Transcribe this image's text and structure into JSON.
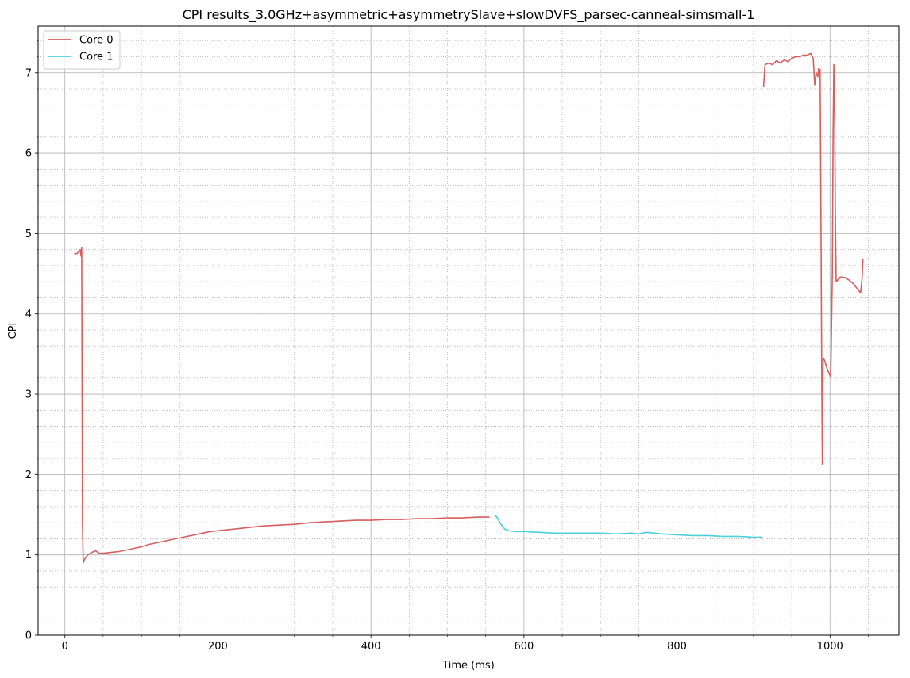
{
  "chart_data": {
    "type": "line",
    "title": "CPI results_3.0GHz+asymmetric+asymmetrySlave+slowDVFS_parsec-canneal-simsmall-1",
    "xlabel": "Time (ms)",
    "ylabel": "CPI",
    "xlim": [
      -35,
      1090
    ],
    "ylim": [
      0,
      7.58
    ],
    "xticks": [
      0,
      200,
      400,
      600,
      800,
      1000
    ],
    "xtick_labels": [
      "0",
      "200",
      "400",
      "600",
      "800",
      "1000"
    ],
    "yticks": [
      0,
      1,
      2,
      3,
      4,
      5,
      6,
      7
    ],
    "ytick_labels": [
      "0",
      "1",
      "2",
      "3",
      "4",
      "5",
      "6",
      "7"
    ],
    "x_minor_step": 50,
    "y_minor_step": 0.2,
    "grid": "major solid, minor dotted",
    "legend_position": "upper-left",
    "series": [
      {
        "name": "Core 0",
        "color": "#d65f5f",
        "segments": [
          [
            [
              12,
              4.75
            ],
            [
              16,
              4.75
            ],
            [
              18,
              4.78
            ],
            [
              20,
              4.8
            ],
            [
              21,
              4.72
            ],
            [
              22,
              4.82
            ],
            [
              23,
              1.4
            ],
            [
              24,
              0.9
            ],
            [
              26,
              0.95
            ],
            [
              30,
              1.0
            ],
            [
              35,
              1.03
            ],
            [
              40,
              1.05
            ],
            [
              45,
              1.02
            ],
            [
              50,
              1.02
            ],
            [
              60,
              1.03
            ],
            [
              70,
              1.04
            ],
            [
              80,
              1.06
            ],
            [
              90,
              1.08
            ],
            [
              100,
              1.1
            ],
            [
              110,
              1.13
            ],
            [
              120,
              1.15
            ],
            [
              130,
              1.17
            ],
            [
              140,
              1.19
            ],
            [
              150,
              1.21
            ],
            [
              160,
              1.23
            ],
            [
              170,
              1.25
            ],
            [
              180,
              1.27
            ],
            [
              190,
              1.29
            ],
            [
              200,
              1.3
            ],
            [
              220,
              1.32
            ],
            [
              240,
              1.34
            ],
            [
              260,
              1.36
            ],
            [
              280,
              1.37
            ],
            [
              300,
              1.38
            ],
            [
              320,
              1.4
            ],
            [
              340,
              1.41
            ],
            [
              360,
              1.42
            ],
            [
              380,
              1.43
            ],
            [
              400,
              1.43
            ],
            [
              420,
              1.44
            ],
            [
              440,
              1.44
            ],
            [
              460,
              1.45
            ],
            [
              480,
              1.45
            ],
            [
              500,
              1.46
            ],
            [
              520,
              1.46
            ],
            [
              540,
              1.47
            ],
            [
              555,
              1.47
            ]
          ],
          [
            [
              913,
              6.82
            ],
            [
              915,
              7.1
            ],
            [
              920,
              7.12
            ],
            [
              925,
              7.1
            ],
            [
              930,
              7.15
            ],
            [
              935,
              7.12
            ],
            [
              940,
              7.16
            ],
            [
              945,
              7.14
            ],
            [
              950,
              7.18
            ],
            [
              955,
              7.2
            ],
            [
              960,
              7.2
            ],
            [
              965,
              7.22
            ],
            [
              970,
              7.22
            ],
            [
              975,
              7.24
            ],
            [
              978,
              7.18
            ],
            [
              980,
              6.85
            ],
            [
              982,
              7.0
            ],
            [
              984,
              6.95
            ],
            [
              985,
              7.05
            ],
            [
              986,
              6.98
            ],
            [
              987,
              7.04
            ],
            [
              988,
              5.5
            ],
            [
              989,
              3.5
            ],
            [
              990,
              2.12
            ],
            [
              991,
              3.45
            ],
            [
              993,
              3.42
            ],
            [
              995,
              3.35
            ],
            [
              997,
              3.3
            ],
            [
              999,
              3.25
            ],
            [
              1001,
              3.22
            ],
            [
              1003,
              4.5
            ],
            [
              1004,
              6.2
            ],
            [
              1005,
              7.1
            ],
            [
              1006,
              6.5
            ],
            [
              1007,
              5.2
            ],
            [
              1008,
              4.4
            ],
            [
              1010,
              4.42
            ],
            [
              1012,
              4.45
            ],
            [
              1015,
              4.46
            ],
            [
              1020,
              4.45
            ],
            [
              1025,
              4.42
            ],
            [
              1030,
              4.38
            ],
            [
              1035,
              4.32
            ],
            [
              1040,
              4.26
            ],
            [
              1042,
              4.45
            ],
            [
              1043,
              4.68
            ]
          ]
        ]
      },
      {
        "name": "Core 1",
        "color": "#4dd0d9",
        "segments": [
          [
            [
              562,
              1.5
            ],
            [
              566,
              1.45
            ],
            [
              570,
              1.38
            ],
            [
              575,
              1.32
            ],
            [
              580,
              1.3
            ],
            [
              590,
              1.29
            ],
            [
              600,
              1.29
            ],
            [
              620,
              1.28
            ],
            [
              640,
              1.27
            ],
            [
              660,
              1.27
            ],
            [
              680,
              1.27
            ],
            [
              700,
              1.27
            ],
            [
              720,
              1.26
            ],
            [
              740,
              1.27
            ],
            [
              750,
              1.26
            ],
            [
              760,
              1.28
            ],
            [
              770,
              1.27
            ],
            [
              780,
              1.26
            ],
            [
              800,
              1.25
            ],
            [
              820,
              1.24
            ],
            [
              840,
              1.24
            ],
            [
              860,
              1.23
            ],
            [
              880,
              1.23
            ],
            [
              900,
              1.22
            ],
            [
              911,
              1.22
            ]
          ]
        ]
      }
    ]
  }
}
